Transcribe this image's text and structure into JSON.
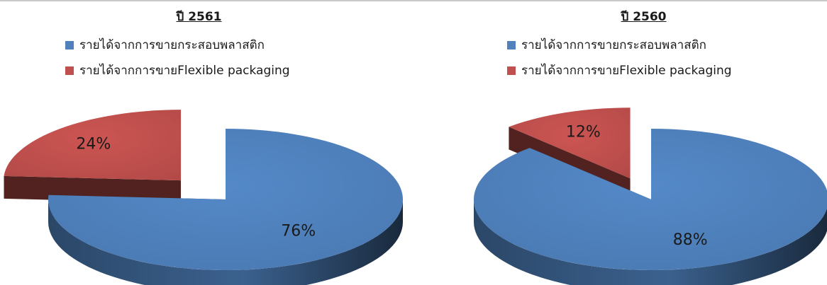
{
  "colors": {
    "blue_top": "#4f81bd",
    "blue_side": "#2f4f7a",
    "red_top": "#c0504d",
    "red_side": "#5a1c1a"
  },
  "chart_data": [
    {
      "type": "pie",
      "title": "ปี 2561",
      "legend_placement": "top",
      "legend": [
        "รายได้จากการขายกระสอบพลาสติก",
        "รายได้จากการขายFlexible packaging"
      ],
      "slices": [
        {
          "label": "รายได้จากการขายกระสอบพลาสติก",
          "value": 76,
          "value_label": "76%",
          "color": "#4f81bd"
        },
        {
          "label": "รายได้จากการขายFlexible packaging",
          "value": 24,
          "value_label": "24%",
          "color": "#c0504d",
          "exploded": true
        }
      ]
    },
    {
      "type": "pie",
      "title": "ปี 2560",
      "legend_placement": "top",
      "legend": [
        "รายได้จากการขายกระสอบพลาสติก",
        "รายได้จากการขายFlexible packaging"
      ],
      "slices": [
        {
          "label": "รายได้จากการขายกระสอบพลาสติก",
          "value": 88,
          "value_label": "88%",
          "color": "#4f81bd"
        },
        {
          "label": "รายได้จากการขายFlexible packaging",
          "value": 12,
          "value_label": "12%",
          "color": "#c0504d",
          "exploded": true
        }
      ]
    }
  ]
}
